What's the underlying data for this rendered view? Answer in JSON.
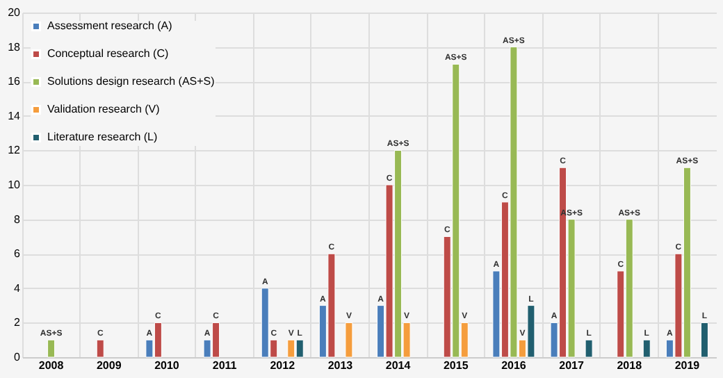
{
  "chart_data": {
    "type": "bar",
    "categories": [
      "2008",
      "2009",
      "2010",
      "2011",
      "2012",
      "2013",
      "2014",
      "2015",
      "2016",
      "2017",
      "2018",
      "2019"
    ],
    "series": [
      {
        "name": "Assessment research (A)",
        "color": "#4a7ebb",
        "values": [
          null,
          null,
          1,
          1,
          4,
          3,
          3,
          null,
          5,
          2,
          null,
          1
        ],
        "value_labels": [
          null,
          null,
          "A",
          "A",
          "A",
          "A",
          "A",
          null,
          "A",
          "A",
          null,
          "A"
        ]
      },
      {
        "name": "Conceptual research (C)",
        "color": "#be4b48",
        "values": [
          null,
          1,
          2,
          2,
          1,
          6,
          10,
          7,
          9,
          11,
          5,
          6
        ],
        "value_labels": [
          null,
          "C",
          "C",
          "C",
          "C",
          "C",
          "C",
          "C",
          "C",
          "C",
          "C",
          "C"
        ]
      },
      {
        "name": "Solutions design research (AS+S)",
        "color": "#98b954",
        "values": [
          1,
          null,
          null,
          null,
          null,
          null,
          12,
          17,
          18,
          8,
          8,
          11
        ],
        "value_labels": [
          "AS+S",
          null,
          null,
          null,
          null,
          null,
          "AS+S",
          "AS+S",
          "AS+S",
          "AS+S",
          "AS+S",
          "AS+S"
        ]
      },
      {
        "name": "Validation research (V)",
        "color": "#f59d3d",
        "values": [
          null,
          null,
          null,
          null,
          1,
          2,
          2,
          2,
          1,
          null,
          null,
          null
        ],
        "value_labels": [
          null,
          null,
          null,
          null,
          "V",
          "V",
          "V",
          "V",
          "V",
          null,
          null,
          null
        ]
      },
      {
        "name": "Literature research (L)",
        "color": "#215f6f",
        "values": [
          null,
          null,
          null,
          null,
          1,
          null,
          null,
          null,
          3,
          1,
          1,
          2
        ],
        "value_labels": [
          null,
          null,
          null,
          null,
          "L",
          null,
          null,
          null,
          "L",
          "L",
          "L",
          "L"
        ]
      }
    ],
    "ylim": [
      0,
      20
    ],
    "yticks": [
      0,
      2,
      4,
      6,
      8,
      10,
      12,
      14,
      16,
      18,
      20
    ],
    "grid": true,
    "legend": "top left"
  }
}
